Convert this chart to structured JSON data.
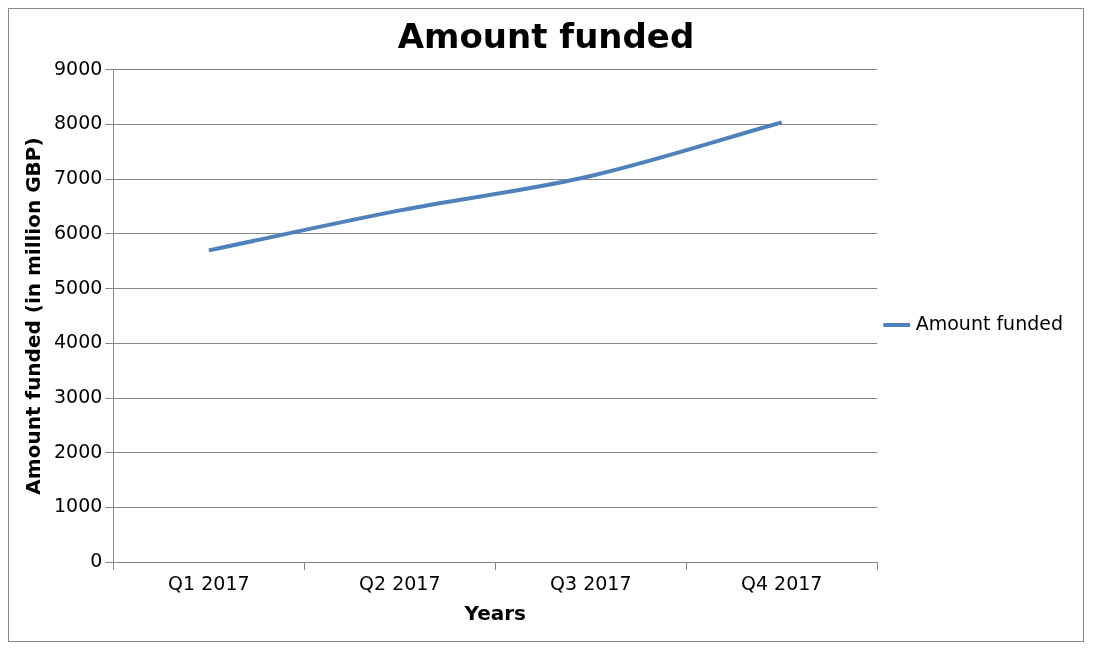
{
  "chart_data": {
    "type": "line",
    "title": "Amount funded",
    "xlabel": "Years",
    "ylabel": "Amount funded (in million GBP)",
    "categories": [
      "Q1 2017",
      "Q2 2017",
      "Q3 2017",
      "Q4 2017"
    ],
    "series": [
      {
        "name": "Amount funded",
        "color": "#4f81bd",
        "values": [
          5700,
          6430,
          7060,
          8040
        ]
      }
    ],
    "ylim": [
      0,
      9000
    ],
    "yticks": [
      0,
      1000,
      2000,
      3000,
      4000,
      5000,
      6000,
      7000,
      8000,
      9000
    ],
    "grid": "y",
    "legend": "right",
    "marker": "none"
  }
}
